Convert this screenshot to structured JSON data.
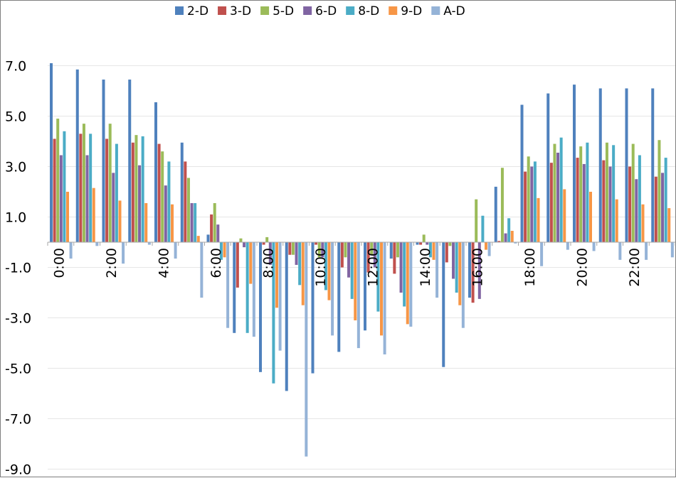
{
  "chart_data": {
    "type": "bar",
    "title": "",
    "xlabel": "",
    "ylabel": "",
    "categories": [
      "0:00",
      "1:00",
      "2:00",
      "3:00",
      "4:00",
      "5:00",
      "6:00",
      "7:00",
      "8:00",
      "9:00",
      "10:00",
      "11:00",
      "12:00",
      "13:00",
      "14:00",
      "15:00",
      "16:00",
      "17:00",
      "18:00",
      "19:00",
      "20:00",
      "21:00",
      "22:00",
      "23:00"
    ],
    "x_tick_labels": [
      "0:00",
      "2:00",
      "4:00",
      "6:00",
      "8:00",
      "10:00",
      "12:00",
      "14:00",
      "16:00",
      "18:00",
      "20:00",
      "22:00"
    ],
    "ylim": [
      -9.0,
      8.0
    ],
    "y_ticks": [
      -9.0,
      -7.0,
      -5.0,
      -3.0,
      -1.0,
      1.0,
      3.0,
      5.0,
      7.0
    ],
    "y_tick_labels": [
      "-9.0",
      "-7.0",
      "-5.0",
      "-3.0",
      "-1.0",
      "1.0",
      "3.0",
      "5.0",
      "7.0"
    ],
    "grid": true,
    "legend_position": "top",
    "series": [
      {
        "name": "2-D",
        "color": "#4f81bd",
        "values": [
          7.1,
          6.85,
          6.45,
          6.45,
          5.55,
          3.95,
          0.3,
          -3.6,
          -5.15,
          -5.9,
          -5.2,
          -4.35,
          -3.5,
          -0.65,
          -0.1,
          -4.95,
          -2.2,
          2.2,
          5.45,
          5.9,
          6.25,
          6.1,
          6.1,
          6.1
        ]
      },
      {
        "name": "3-D",
        "color": "#c0504d",
        "values": [
          4.1,
          4.3,
          4.1,
          3.95,
          3.9,
          3.2,
          1.1,
          -1.8,
          -0.1,
          -0.5,
          -0.1,
          -1.0,
          -1.2,
          -1.25,
          -0.1,
          -0.8,
          -2.4,
          0.05,
          2.8,
          3.15,
          3.35,
          3.25,
          3.0,
          2.6
        ]
      },
      {
        "name": "5-D",
        "color": "#9bbb59",
        "values": [
          4.9,
          4.7,
          4.7,
          4.25,
          3.6,
          2.55,
          1.55,
          0.15,
          0.2,
          -0.5,
          -0.6,
          -0.6,
          -0.5,
          -0.6,
          0.3,
          -0.15,
          1.7,
          2.95,
          3.4,
          3.9,
          3.8,
          3.95,
          3.9,
          4.05
        ]
      },
      {
        "name": "6-D",
        "color": "#8064a2",
        "values": [
          3.45,
          3.45,
          2.75,
          3.05,
          2.25,
          1.55,
          0.7,
          -0.2,
          -0.9,
          -0.9,
          -0.6,
          -1.4,
          -1.0,
          -2.0,
          -0.1,
          -1.45,
          -2.25,
          0.35,
          3.0,
          3.55,
          3.1,
          3.0,
          2.5,
          2.75
        ]
      },
      {
        "name": "8-D",
        "color": "#4bacc6",
        "values": [
          4.4,
          4.3,
          3.9,
          4.2,
          3.2,
          1.55,
          -0.7,
          -3.6,
          -5.6,
          -1.7,
          -1.9,
          -2.25,
          -2.75,
          -2.55,
          -0.6,
          -2.0,
          1.05,
          0.95,
          3.2,
          4.15,
          3.95,
          3.85,
          3.45,
          3.35
        ]
      },
      {
        "name": "9-D",
        "color": "#f79646",
        "values": [
          2.0,
          2.15,
          1.65,
          1.55,
          1.5,
          0.25,
          -0.6,
          -1.65,
          -2.6,
          -2.5,
          -2.3,
          -3.1,
          -3.7,
          -3.25,
          -0.7,
          -2.5,
          -0.3,
          0.45,
          1.75,
          2.1,
          2.0,
          1.7,
          1.5,
          1.35
        ]
      },
      {
        "name": "A-D",
        "color": "#95b3d7",
        "values": [
          -0.65,
          -0.15,
          -0.85,
          -0.1,
          -0.65,
          -2.2,
          -3.4,
          -3.75,
          -4.3,
          -8.5,
          -3.7,
          -4.2,
          -4.45,
          -3.35,
          -2.2,
          -3.4,
          -0.55,
          -0.05,
          -0.95,
          -0.3,
          -0.35,
          -0.7,
          -0.7,
          -0.6
        ]
      }
    ]
  }
}
